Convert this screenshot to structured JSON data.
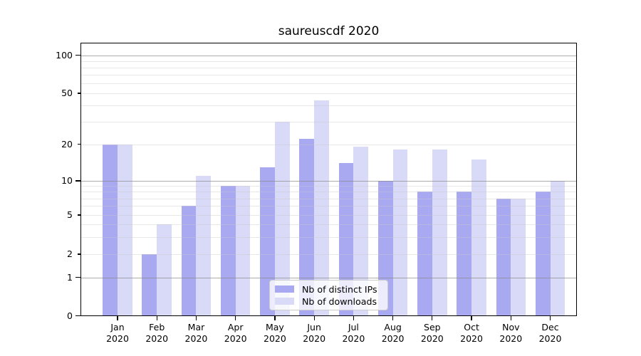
{
  "chart_data": {
    "type": "bar",
    "title": "saureuscdf 2020",
    "categories": [
      "Jan",
      "Feb",
      "Mar",
      "Apr",
      "May",
      "Jun",
      "Jul",
      "Aug",
      "Sep",
      "Oct",
      "Nov",
      "Dec"
    ],
    "category_year": "2020",
    "series": [
      {
        "name": "Nb of distinct IPs",
        "color": "#a9a9f1",
        "values": [
          20,
          2,
          6,
          9,
          13,
          22,
          14,
          10,
          8,
          8,
          7,
          8
        ]
      },
      {
        "name": "Nb of downloads",
        "color": "#d9d9f8",
        "values": [
          20,
          4,
          11,
          9,
          30,
          44,
          19,
          18,
          18,
          15,
          7,
          10
        ]
      }
    ],
    "y_axis": {
      "scale": "symlog",
      "tick_labels": [
        "0",
        "1",
        "2",
        "5",
        "10",
        "20",
        "50",
        "100"
      ],
      "tick_values": [
        0,
        1,
        2,
        5,
        10,
        20,
        50,
        100
      ],
      "minor_grid_values": [
        2,
        3,
        4,
        5,
        6,
        7,
        8,
        9,
        20,
        30,
        40,
        50,
        60,
        70,
        80,
        90
      ],
      "major_grid_values": [
        1,
        10,
        100
      ]
    },
    "grid": true,
    "legend_position": "lower-center",
    "colors": {
      "grid_minor": "#e8e8e8",
      "grid_major": "#aaaaaa",
      "axis": "#000000",
      "background": "#ffffff"
    }
  }
}
